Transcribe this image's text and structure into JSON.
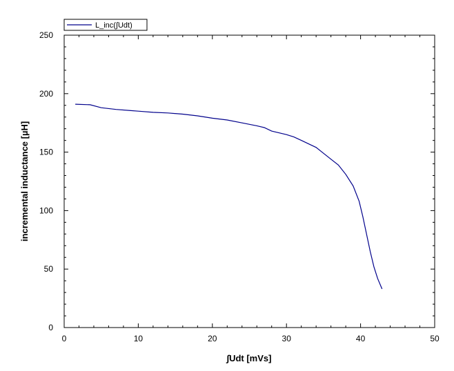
{
  "chart_data": {
    "type": "line",
    "title": "",
    "xlabel": "∫Udt [mVs]",
    "ylabel": "incremental inductance [µH]",
    "xlim": [
      0,
      50
    ],
    "ylim": [
      0,
      250
    ],
    "xticks": [
      0,
      10,
      20,
      30,
      40,
      50
    ],
    "yticks": [
      0,
      50,
      100,
      150,
      200,
      250
    ],
    "xtick_labels": [
      "0",
      "10",
      "20",
      "30",
      "40",
      "50"
    ],
    "ytick_labels": [
      "0",
      "50",
      "100",
      "150",
      "200",
      "250"
    ],
    "grid": false,
    "legend_position": "top-left",
    "series": [
      {
        "name": "L_inc(∫Udt)",
        "color": "#00008b",
        "x": [
          1.5,
          3.5,
          5,
          7,
          9,
          10,
          12,
          14,
          16,
          18,
          20,
          22,
          24,
          26,
          27,
          28,
          30,
          31,
          32,
          34,
          35,
          36,
          37,
          38,
          39,
          39.8,
          40.3,
          40.8,
          41.3,
          41.8,
          42.3,
          42.9
        ],
        "y": [
          191,
          190.5,
          188,
          186.5,
          185.5,
          185,
          184,
          183.5,
          182.5,
          181,
          179,
          177.5,
          175,
          172.5,
          171,
          168,
          165,
          163,
          160,
          154,
          149,
          144,
          139,
          131,
          121,
          108,
          95,
          80,
          65,
          52,
          42,
          33
        ]
      }
    ]
  }
}
